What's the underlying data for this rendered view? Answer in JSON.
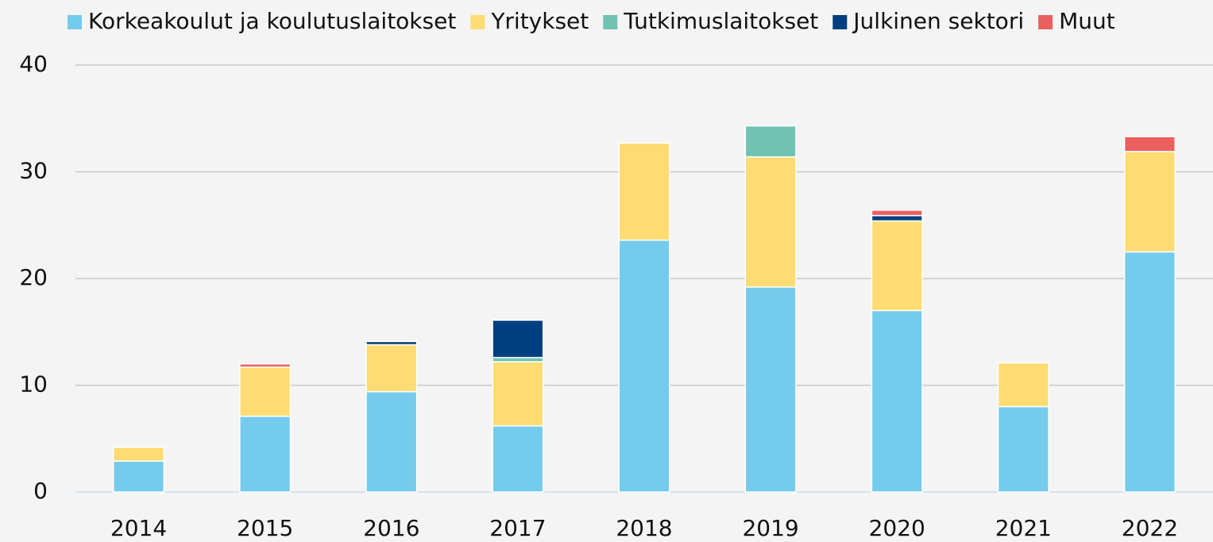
{
  "chart_data": {
    "type": "stacked_bar",
    "categories": [
      "2014",
      "2015",
      "2016",
      "2017",
      "2018",
      "2019",
      "2020",
      "2021",
      "2022"
    ],
    "series": [
      {
        "name": "Korkeakoulut ja koulutuslaitokset",
        "color": "#75cbeb",
        "values": [
          2.9,
          7.1,
          9.4,
          6.2,
          23.6,
          19.2,
          17.0,
          8.0,
          22.5
        ]
      },
      {
        "name": "Yritykset",
        "color": "#ffdc73",
        "values": [
          1.3,
          4.6,
          4.4,
          6.0,
          9.1,
          12.2,
          8.4,
          4.1,
          9.4
        ]
      },
      {
        "name": "Tutkimuslaitokset",
        "color": "#70c3b2",
        "values": [
          0,
          0,
          0,
          0.4,
          0,
          2.9,
          0,
          0,
          0
        ]
      },
      {
        "name": "Julkinen sektori",
        "color": "#003f7f",
        "values": [
          0,
          0,
          0.3,
          3.5,
          0,
          0,
          0.5,
          0,
          0
        ]
      },
      {
        "name": "Muut",
        "color": "#eb5f5f",
        "values": [
          0,
          0.3,
          0,
          0,
          0,
          0,
          0.5,
          0,
          1.4
        ]
      }
    ],
    "ylim": [
      0,
      40
    ],
    "yticks": [
      0,
      10,
      20,
      30,
      40
    ],
    "grid": true,
    "legend": "top"
  }
}
